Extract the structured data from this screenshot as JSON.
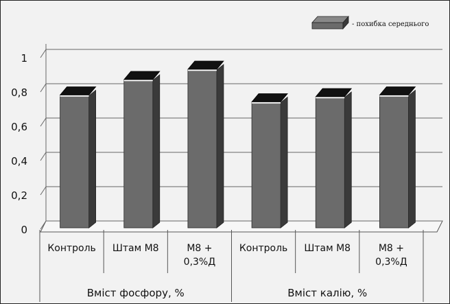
{
  "chart_data": {
    "type": "bar",
    "categories": [
      "Контроль",
      "Штам М8",
      "М8 + 0,3%Д",
      "Контроль",
      "Штам М8",
      "М8 + 0,3%Д"
    ],
    "category_lines": [
      [
        "Контроль"
      ],
      [
        "Штам М8"
      ],
      [
        "М8 +",
        "0,3%Д"
      ],
      [
        "Контроль"
      ],
      [
        "Штам М8"
      ],
      [
        "М8 +",
        "0,3%Д"
      ]
    ],
    "values": [
      0.73,
      0.82,
      0.88,
      0.69,
      0.72,
      0.73
    ],
    "error": [
      0.02,
      0.02,
      0.02,
      0.02,
      0.02,
      0.02
    ],
    "groups": [
      "Вміст фосфору, %",
      "Вміст калію, %"
    ],
    "yticks": [
      "0",
      "0,2",
      "0,4",
      "0,6",
      "0,8",
      "1"
    ],
    "ylim": [
      0,
      1
    ],
    "legend": "- похибка середнього",
    "legend_position": "top-right",
    "grid": true,
    "colors": {
      "bar": "#6b6b6b",
      "error_cap": "#111111",
      "background": "#f2f2f2"
    }
  }
}
